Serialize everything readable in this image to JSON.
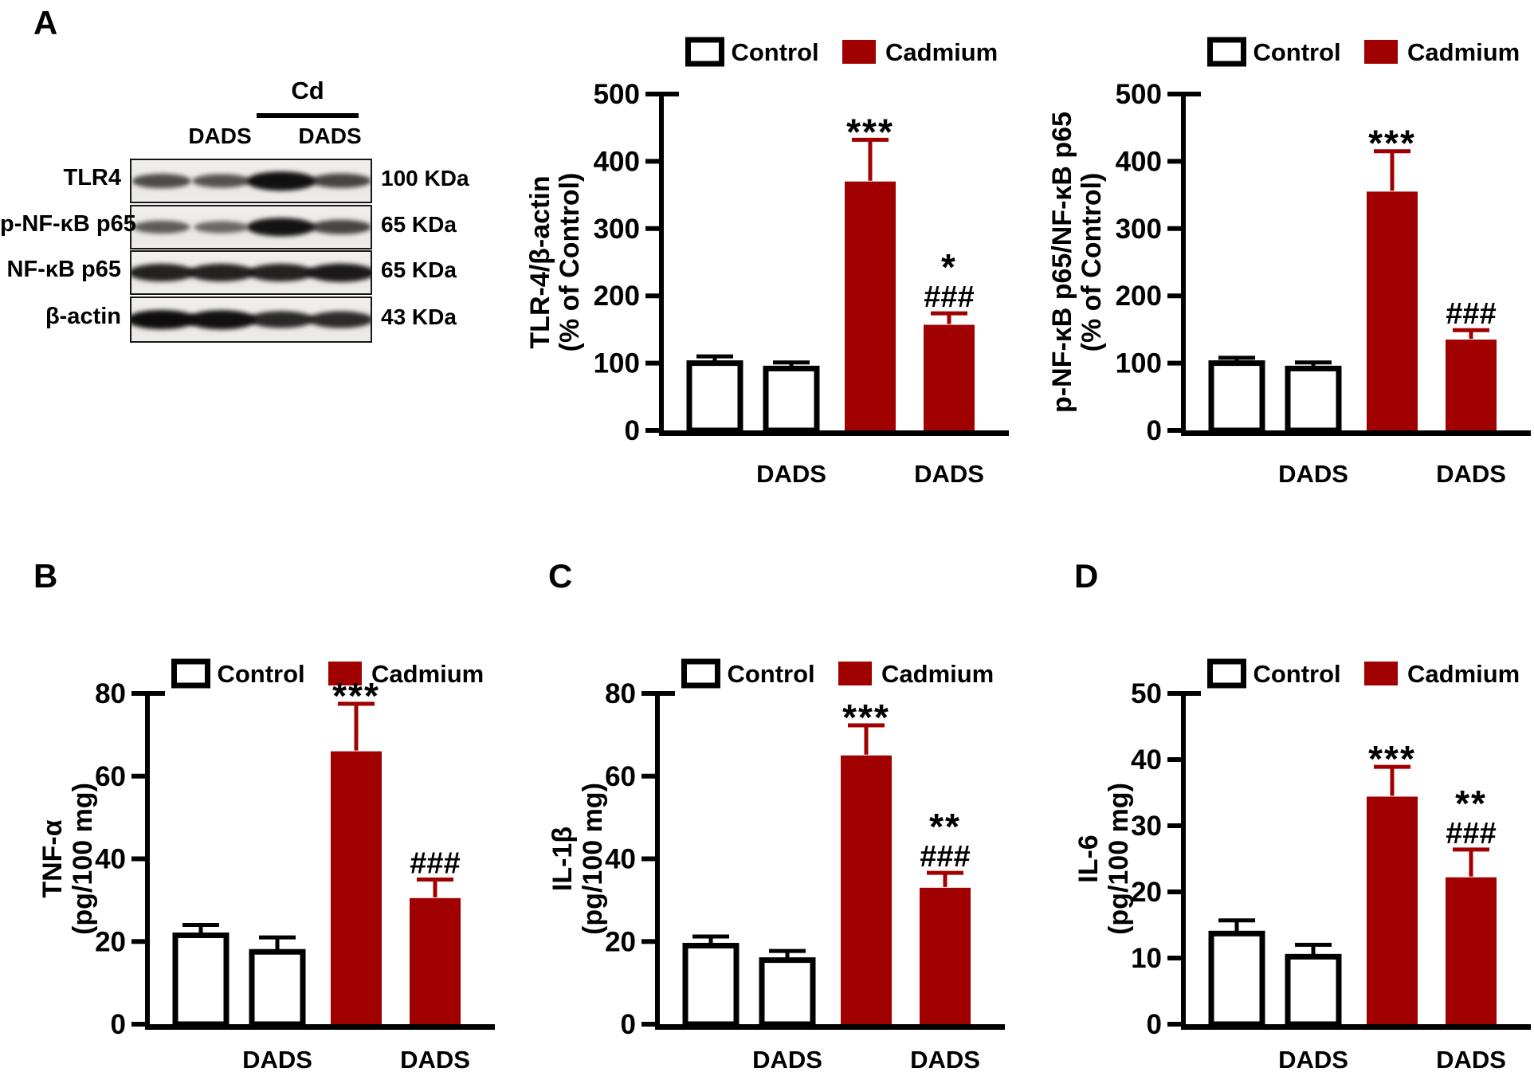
{
  "panels": {
    "a": "A",
    "b": "B",
    "c": "C",
    "d": "D"
  },
  "colors": {
    "cadmium_red": "#A00000",
    "bar_outline": "#000000",
    "control_fill": "#FFFFFF",
    "axis_black": "#000000"
  },
  "legend": {
    "control": "Control",
    "cadmium": "Cadmium"
  },
  "blot": {
    "treatment_label": "Cd",
    "group_labels": [
      "DADS",
      "DADS"
    ],
    "rows": [
      {
        "protein": "TLR4",
        "kda": "100 KDa",
        "bands": [
          0.55,
          0.5,
          0.97,
          0.6
        ]
      },
      {
        "protein": "p-NF-κB p65",
        "kda": "65 KDa",
        "bands": [
          0.45,
          0.35,
          0.95,
          0.6
        ]
      },
      {
        "protein": "NF-κB p65",
        "kda": "65 KDa",
        "bands": [
          0.85,
          0.85,
          0.85,
          0.9
        ]
      },
      {
        "protein": "β-actin",
        "kda": "43 KDa",
        "bands": [
          1.0,
          0.97,
          0.8,
          0.78
        ]
      }
    ]
  },
  "chart_data": [
    {
      "id": "tlr4-beta-actin",
      "panel": "A",
      "type": "bar",
      "ylabel_line1": "TLR-4/β-actin",
      "ylabel_line2": "(% of Control)",
      "ylim": [
        0,
        500
      ],
      "yticks": [
        0,
        100,
        200,
        300,
        400,
        500
      ],
      "categories": [
        "Control",
        "Control DADS",
        "Cadmium",
        "Cadmium DADS"
      ],
      "x_tick_labels": [
        "",
        "DADS",
        "",
        "DADS"
      ],
      "values": [
        100,
        92,
        370,
        157
      ],
      "errors": [
        10,
        9,
        62,
        17
      ],
      "bar_colors": [
        "white",
        "white",
        "red",
        "red"
      ],
      "sig_stars": [
        "",
        "",
        "***",
        "*"
      ],
      "sig_hashes": [
        "",
        "",
        "",
        "###"
      ],
      "legend_position": "top"
    },
    {
      "id": "p-nfkb-p65-ratio",
      "panel": "A",
      "type": "bar",
      "ylabel_line1": "p-NF-κB p65/NF-κB p65",
      "ylabel_line2": "(% of Control)",
      "ylim": [
        0,
        500
      ],
      "yticks": [
        0,
        100,
        200,
        300,
        400,
        500
      ],
      "categories": [
        "Control",
        "Control DADS",
        "Cadmium",
        "Cadmium DADS"
      ],
      "x_tick_labels": [
        "",
        "DADS",
        "",
        "DADS"
      ],
      "values": [
        100,
        92,
        355,
        135
      ],
      "errors": [
        8,
        9,
        60,
        14
      ],
      "bar_colors": [
        "white",
        "white",
        "red",
        "red"
      ],
      "sig_stars": [
        "",
        "",
        "***",
        ""
      ],
      "sig_hashes": [
        "",
        "",
        "",
        "###"
      ],
      "legend_position": "top"
    },
    {
      "id": "tnf-alpha",
      "panel": "B",
      "type": "bar",
      "ylabel_line1": "TNF-α",
      "ylabel_line2": "(pg/100 mg)",
      "ylim": [
        0,
        80
      ],
      "yticks": [
        0,
        20,
        40,
        60,
        80
      ],
      "categories": [
        "Control",
        "Control DADS",
        "Cadmium",
        "Cadmium DADS"
      ],
      "x_tick_labels": [
        "",
        "DADS",
        "",
        "DADS"
      ],
      "values": [
        21.5,
        17.5,
        66,
        30.5
      ],
      "errors": [
        2.5,
        3.5,
        11.5,
        4.5
      ],
      "bar_colors": [
        "white",
        "white",
        "red",
        "red"
      ],
      "sig_stars": [
        "",
        "",
        "***",
        ""
      ],
      "sig_hashes": [
        "",
        "",
        "",
        "###"
      ],
      "legend_position": "top"
    },
    {
      "id": "il-1-beta",
      "panel": "C",
      "type": "bar",
      "ylabel_line1": "IL-1β",
      "ylabel_line2": "(pg/100 mg)",
      "ylim": [
        0,
        80
      ],
      "yticks": [
        0,
        20,
        40,
        60,
        80
      ],
      "categories": [
        "Control",
        "Control DADS",
        "Cadmium",
        "Cadmium DADS"
      ],
      "x_tick_labels": [
        "",
        "DADS",
        "",
        "DADS"
      ],
      "values": [
        19,
        15.5,
        65,
        33
      ],
      "errors": [
        2.2,
        2.2,
        7.3,
        3.6
      ],
      "bar_colors": [
        "white",
        "white",
        "red",
        "red"
      ],
      "sig_stars": [
        "",
        "",
        "***",
        "**"
      ],
      "sig_hashes": [
        "",
        "",
        "",
        "###"
      ],
      "legend_position": "top"
    },
    {
      "id": "il-6",
      "panel": "D",
      "type": "bar",
      "ylabel_line1": "IL-6",
      "ylabel_line2": "(pg/100 mg)",
      "ylim": [
        0,
        50
      ],
      "yticks": [
        0,
        10,
        20,
        30,
        40,
        50
      ],
      "categories": [
        "Control",
        "Control DADS",
        "Cadmium",
        "Cadmium DADS"
      ],
      "x_tick_labels": [
        "",
        "DADS",
        "",
        "DADS"
      ],
      "values": [
        13.7,
        10.2,
        34.4,
        22.2
      ],
      "errors": [
        2.0,
        1.8,
        4.5,
        4.2
      ],
      "bar_colors": [
        "white",
        "white",
        "red",
        "red"
      ],
      "sig_stars": [
        "",
        "",
        "***",
        "**"
      ],
      "sig_hashes": [
        "",
        "",
        "",
        "###"
      ],
      "legend_position": "top"
    }
  ]
}
